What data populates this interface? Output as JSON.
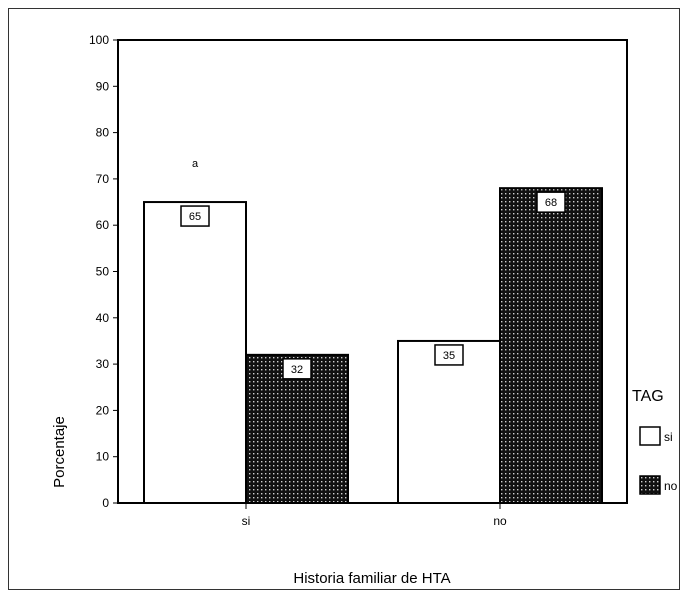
{
  "chart_data": {
    "type": "bar",
    "title": "",
    "xlabel": "Historia familiar de HTA",
    "ylabel": "Porcentaje",
    "ylim": [
      0,
      100
    ],
    "yticks": [
      0,
      10,
      20,
      30,
      40,
      50,
      60,
      70,
      80,
      90,
      100
    ],
    "categories": [
      "si",
      "no"
    ],
    "series": [
      {
        "name": "si",
        "values": [
          65,
          35
        ],
        "data_labels": [
          "65",
          "35"
        ],
        "pattern": "solid",
        "color": "#ffffff"
      },
      {
        "name": "no",
        "values": [
          32,
          68
        ],
        "data_labels": [
          "32",
          "68"
        ],
        "pattern": "dotted-grid",
        "color": "#1a1a1a"
      }
    ],
    "annotation": "a",
    "legend": {
      "title": "TAG",
      "position": "right"
    },
    "grid": false
  }
}
